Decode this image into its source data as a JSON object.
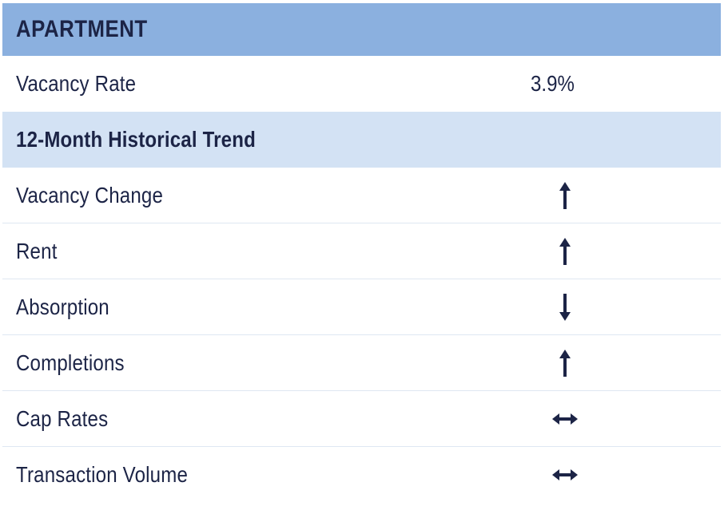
{
  "header": {
    "title": "APARTMENT"
  },
  "vacancy_rate": {
    "label": "Vacancy Rate",
    "value": "3.9%"
  },
  "trend_section": {
    "title": "12-Month Historical Trend"
  },
  "trends": [
    {
      "label": "Vacancy Change",
      "direction": "up",
      "icon": "arrow-up-icon"
    },
    {
      "label": "Rent",
      "direction": "up",
      "icon": "arrow-up-icon"
    },
    {
      "label": "Absorption",
      "direction": "down",
      "icon": "arrow-down-icon"
    },
    {
      "label": "Completions",
      "direction": "up",
      "icon": "arrow-up-icon"
    },
    {
      "label": "Cap Rates",
      "direction": "flat",
      "icon": "arrow-left-right-icon"
    },
    {
      "label": "Transaction Volume",
      "direction": "flat",
      "icon": "arrow-left-right-icon"
    }
  ],
  "colors": {
    "header_bg": "#8bb0df",
    "subheader_bg": "#d3e2f4",
    "text": "#1c2446",
    "arrow": "#1c2446"
  }
}
